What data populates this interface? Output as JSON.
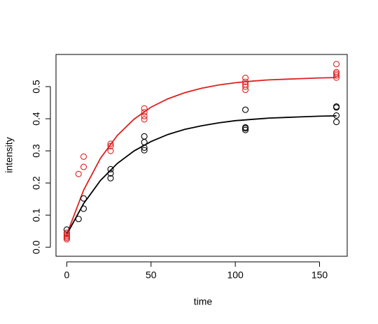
{
  "chart_data": {
    "type": "scatter",
    "x_label": "time",
    "y_label": "intensity",
    "xlim": [
      -6.4,
      166.4
    ],
    "ylim": [
      -0.028,
      0.6
    ],
    "xticks": [
      0,
      50,
      100,
      150
    ],
    "yticks": [
      {
        "value": 0,
        "label": "0.0"
      },
      0.1,
      0.2,
      0.3,
      0.4,
      0.5
    ],
    "series": [
      {
        "color": "#000000",
        "x": [
          0,
          0,
          0,
          0,
          7,
          10,
          10,
          26,
          26,
          26,
          46,
          46,
          46,
          46,
          106,
          106,
          106,
          106,
          160,
          160,
          160,
          160
        ],
        "values": [
          0.03,
          0.035,
          0.045,
          0.055,
          0.088,
          0.12,
          0.152,
          0.215,
          0.23,
          0.243,
          0.302,
          0.31,
          0.327,
          0.345,
          0.365,
          0.37,
          0.373,
          0.428,
          0.39,
          0.41,
          0.435,
          0.438
        ]
      },
      {
        "color": "#df1f1f",
        "x": [
          0,
          0,
          0,
          0,
          0,
          7,
          10,
          10,
          26,
          26,
          26,
          46,
          46,
          46,
          46,
          106,
          106,
          106,
          106,
          106,
          160,
          160,
          160,
          160,
          160
        ],
        "values": [
          0.025,
          0.03,
          0.035,
          0.04,
          0.045,
          0.228,
          0.25,
          0.282,
          0.3,
          0.315,
          0.322,
          0.398,
          0.408,
          0.42,
          0.432,
          0.49,
          0.5,
          0.507,
          0.515,
          0.527,
          0.528,
          0.535,
          0.54,
          0.545,
          0.57
        ]
      }
    ],
    "lines": [
      {
        "color": "#000000",
        "x": [
          0,
          10,
          20,
          30,
          40,
          50,
          60,
          70,
          80,
          90,
          100,
          110,
          120,
          130,
          140,
          150,
          160
        ],
        "values": [
          0.04,
          0.136,
          0.208,
          0.261,
          0.3,
          0.329,
          0.351,
          0.367,
          0.378,
          0.387,
          0.394,
          0.398,
          0.402,
          0.404,
          0.406,
          0.408,
          0.409
        ]
      },
      {
        "color": "#df1f1f",
        "x": [
          0,
          10,
          20,
          30,
          40,
          50,
          60,
          70,
          80,
          90,
          100,
          110,
          120,
          130,
          140,
          150,
          160
        ],
        "values": [
          0.04,
          0.178,
          0.277,
          0.348,
          0.399,
          0.436,
          0.462,
          0.481,
          0.495,
          0.505,
          0.512,
          0.517,
          0.521,
          0.523,
          0.525,
          0.527,
          0.528
        ]
      }
    ]
  }
}
